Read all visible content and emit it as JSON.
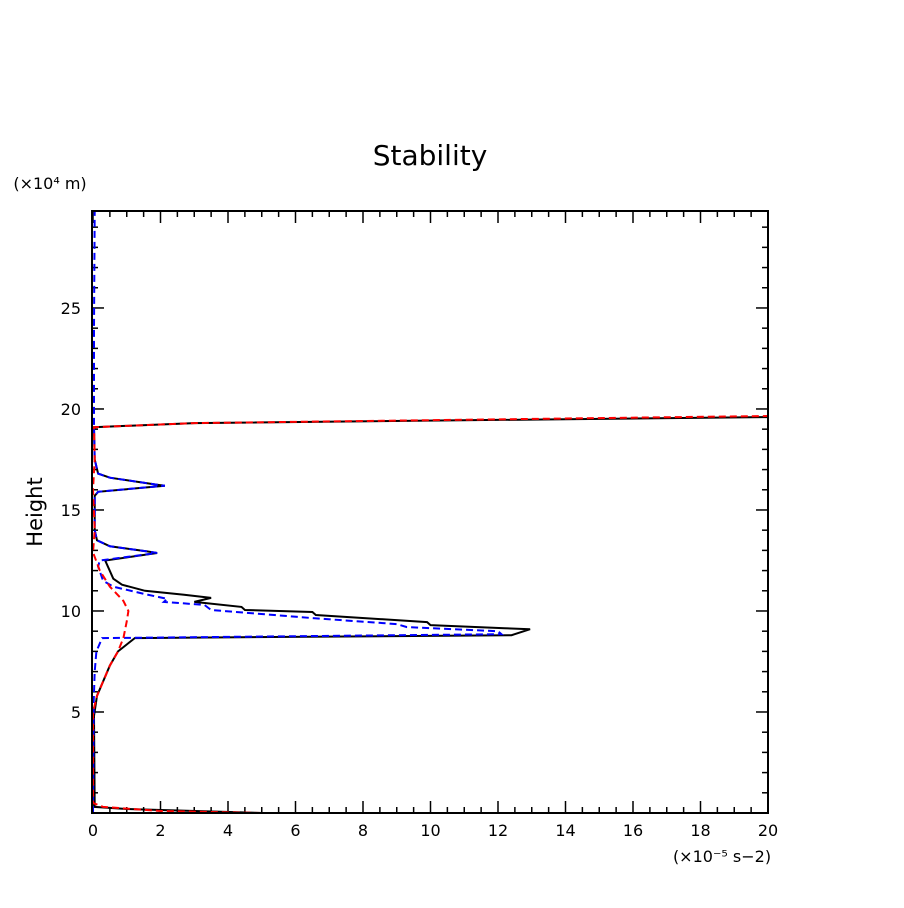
{
  "chart_data": {
    "type": "line",
    "title": "Stability",
    "xlabel": "",
    "ylabel": "Height",
    "x_unit_label": "(×10⁻⁵ s−2)",
    "y_unit_label": "(×10⁴ m)",
    "xlim": [
      0,
      20
    ],
    "ylim": [
      0,
      29.8
    ],
    "xticks": [
      0,
      2,
      4,
      6,
      8,
      10,
      12,
      14,
      16,
      18,
      20
    ],
    "yticks": [
      5,
      10,
      15,
      20,
      25
    ],
    "grid": false,
    "legend": "none",
    "series": [
      {
        "name": "black-solid",
        "color": "#000000",
        "dash": "solid",
        "points": [
          [
            5,
            0
          ],
          [
            1,
            0.2
          ],
          [
            0.05,
            0.3
          ],
          [
            0.03,
            4.8
          ],
          [
            0.12,
            5.8
          ],
          [
            0.5,
            7.3
          ],
          [
            0.74,
            8.0
          ],
          [
            1.24,
            8.66
          ],
          [
            12.4,
            8.8
          ],
          [
            12.95,
            9.1
          ],
          [
            12.2,
            9.15
          ],
          [
            10.0,
            9.3
          ],
          [
            9.9,
            9.45
          ],
          [
            6.6,
            9.8
          ],
          [
            6.5,
            9.95
          ],
          [
            4.5,
            10.05
          ],
          [
            4.4,
            10.2
          ],
          [
            3.0,
            10.45
          ],
          [
            3.5,
            10.65
          ],
          [
            2.7,
            10.8
          ],
          [
            1.54,
            11.0
          ],
          [
            0.86,
            11.3
          ],
          [
            0.6,
            11.6
          ],
          [
            0.36,
            12.5
          ],
          [
            1.9,
            12.87
          ],
          [
            1.6,
            12.95
          ],
          [
            0.5,
            13.2
          ],
          [
            0.12,
            13.5
          ],
          [
            0.05,
            14
          ],
          [
            0.05,
            15.7
          ],
          [
            0.15,
            15.9
          ],
          [
            2.13,
            16.2
          ],
          [
            1.9,
            16.25
          ],
          [
            0.5,
            16.6
          ],
          [
            0.15,
            16.8
          ],
          [
            0.05,
            17.5
          ],
          [
            0.03,
            19.1
          ],
          [
            3,
            19.3
          ],
          [
            20,
            19.6
          ]
        ]
      },
      {
        "name": "blue-dashed",
        "color": "#0000ff",
        "dash": "dashed",
        "points": [
          [
            0,
            0
          ],
          [
            0.02,
            5.5
          ],
          [
            0.05,
            7.0
          ],
          [
            0.1,
            8.0
          ],
          [
            0.27,
            8.66
          ],
          [
            12.1,
            8.85
          ],
          [
            12.0,
            9.0
          ],
          [
            9.3,
            9.2
          ],
          [
            9.0,
            9.35
          ],
          [
            6.5,
            9.65
          ],
          [
            3.5,
            10.05
          ],
          [
            3.3,
            10.3
          ],
          [
            2.1,
            10.45
          ],
          [
            2.2,
            10.6
          ],
          [
            1.5,
            10.85
          ],
          [
            0.6,
            11.2
          ],
          [
            0.3,
            11.5
          ],
          [
            0.15,
            12.2
          ],
          [
            0.2,
            12.5
          ],
          [
            1.9,
            12.87
          ],
          [
            1.6,
            12.95
          ],
          [
            0.5,
            13.2
          ],
          [
            0.12,
            13.5
          ],
          [
            0.05,
            14
          ],
          [
            0.05,
            15.7
          ],
          [
            0.15,
            15.9
          ],
          [
            2.13,
            16.2
          ],
          [
            1.9,
            16.25
          ],
          [
            0.5,
            16.6
          ],
          [
            0.15,
            16.8
          ],
          [
            0.05,
            17.5
          ],
          [
            0.03,
            19.1
          ],
          [
            0.03,
            24
          ],
          [
            0.05,
            29.8
          ]
        ]
      },
      {
        "name": "red-dashed",
        "color": "#ff0000",
        "dash": "dashed",
        "points": [
          [
            5,
            0
          ],
          [
            2,
            0.1
          ],
          [
            0.3,
            0.3
          ],
          [
            0,
            0.5
          ],
          [
            0,
            5
          ],
          [
            0.12,
            5.8
          ],
          [
            0.5,
            7.3
          ],
          [
            0.74,
            8.0
          ],
          [
            0.9,
            8.66
          ],
          [
            1.0,
            9.5
          ],
          [
            1.05,
            10
          ],
          [
            0.9,
            10.5
          ],
          [
            0.5,
            11.2
          ],
          [
            0.2,
            12
          ],
          [
            0,
            12.9
          ],
          [
            0.05,
            14
          ],
          [
            0,
            16
          ],
          [
            0.05,
            17.5
          ],
          [
            0.03,
            19.1
          ],
          [
            3,
            19.3
          ],
          [
            20,
            19.65
          ]
        ]
      }
    ]
  }
}
